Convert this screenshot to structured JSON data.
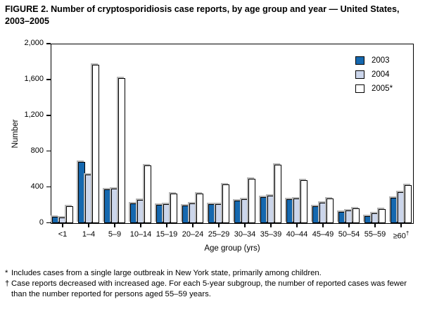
{
  "figure": {
    "title": "FIGURE 2. Number of cryptosporidiosis case reports, by age group and year — United States, 2003–2005"
  },
  "chart_data": {
    "type": "bar",
    "title": "FIGURE 2. Number of cryptosporidiosis case reports, by age group and year — United States, 2003–2005",
    "xlabel": "Age group (yrs)",
    "ylabel": "Number",
    "ylim": [
      0,
      2000
    ],
    "yticks": [
      0,
      400,
      800,
      1200,
      1600,
      2000
    ],
    "ytick_labels": [
      "0",
      "400",
      "800",
      "1,200",
      "1,600",
      "2,000"
    ],
    "grid": false,
    "legend_position": "top-right-inside",
    "categories": [
      "<1",
      "1–4",
      "5–9",
      "10–14",
      "15–19",
      "20–24",
      "25–29",
      "30–34",
      "35–39",
      "40–44",
      "45–49",
      "50–54",
      "55–59",
      "≥60†"
    ],
    "series": [
      {
        "name": "2003",
        "color": "#1568af",
        "values": [
          75,
          690,
          380,
          220,
          205,
          195,
          215,
          255,
          290,
          265,
          190,
          130,
          80,
          285
        ]
      },
      {
        "name": "2004",
        "color": "#ccd6eb",
        "values": [
          60,
          545,
          385,
          260,
          210,
          220,
          215,
          270,
          305,
          280,
          230,
          145,
          110,
          350
        ]
      },
      {
        "name": "2005*",
        "color": "#ffffff",
        "values": [
          190,
          1780,
          1625,
          645,
          330,
          335,
          435,
          500,
          655,
          480,
          280,
          165,
          160,
          425
        ]
      }
    ]
  },
  "footnotes": [
    {
      "marker": "*",
      "text": "Includes cases from a single large outbreak in New York state, primarily among children."
    },
    {
      "marker": "†",
      "text": "Case reports decreased with increased age. For each 5-year subgroup, the number of reported cases was fewer than the number reported for persons aged 55–59 years."
    }
  ]
}
